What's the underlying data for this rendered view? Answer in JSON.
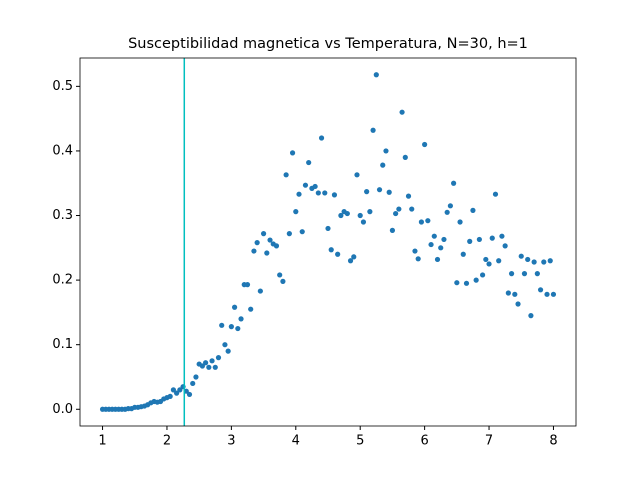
{
  "chart_data": {
    "type": "scatter",
    "title": "Susceptibilidad magnetica vs Temperatura, N=30, h=1",
    "x": [
      1,
      1.05,
      1.1,
      1.15,
      1.2,
      1.25,
      1.3,
      1.35,
      1.4,
      1.45,
      1.5,
      1.55,
      1.6,
      1.65,
      1.7,
      1.75,
      1.8,
      1.85,
      1.9,
      1.95,
      2,
      2.05,
      2.1,
      2.15,
      2.2,
      2.25,
      2.3,
      2.35,
      2.4,
      2.45,
      2.5,
      2.55,
      2.6,
      2.65,
      2.7,
      2.75,
      2.8,
      2.85,
      2.9,
      2.95,
      3,
      3.05,
      3.1,
      3.15,
      3.2,
      3.25,
      3.3,
      3.35,
      3.4,
      3.45,
      3.5,
      3.55,
      3.6,
      3.65,
      3.7,
      3.75,
      3.8,
      3.85,
      3.9,
      3.95,
      4,
      4.05,
      4.1,
      4.15,
      4.2,
      4.25,
      4.3,
      4.35,
      4.4,
      4.45,
      4.5,
      4.55,
      4.6,
      4.65,
      4.7,
      4.75,
      4.8,
      4.85,
      4.9,
      4.95,
      5,
      5.05,
      5.1,
      5.15,
      5.2,
      5.25,
      5.3,
      5.35,
      5.4,
      5.45,
      5.5,
      5.55,
      5.6,
      5.65,
      5.7,
      5.75,
      5.8,
      5.85,
      5.9,
      5.95,
      6,
      6.05,
      6.1,
      6.15,
      6.2,
      6.25,
      6.3,
      6.35,
      6.4,
      6.45,
      6.5,
      6.55,
      6.6,
      6.65,
      6.7,
      6.75,
      6.8,
      6.85,
      6.9,
      6.95,
      7,
      7.05,
      7.1,
      7.15,
      7.2,
      7.25,
      7.3,
      7.35,
      7.4,
      7.45,
      7.5,
      7.55,
      7.6,
      7.65,
      7.7,
      7.75,
      7.8,
      7.85,
      7.9,
      7.95,
      8
    ],
    "values": [
      0,
      0,
      0,
      0,
      0,
      0,
      0,
      0,
      0.001,
      0.001,
      0.003,
      0.003,
      0.004,
      0.005,
      0.007,
      0.01,
      0.012,
      0.011,
      0.012,
      0.016,
      0.018,
      0.02,
      0.03,
      0.025,
      0.03,
      0.035,
      0.028,
      0.023,
      0.04,
      0.05,
      0.07,
      0.067,
      0.072,
      0.065,
      0.075,
      0.065,
      0.08,
      0.13,
      0.1,
      0.09,
      0.128,
      0.158,
      0.125,
      0.14,
      0.193,
      0.193,
      0.155,
      0.245,
      0.258,
      0.183,
      0.272,
      0.242,
      0.262,
      0.256,
      0.253,
      0.208,
      0.198,
      0.363,
      0.272,
      0.397,
      0.306,
      0.333,
      0.275,
      0.347,
      0.382,
      0.342,
      0.345,
      0.335,
      0.42,
      0.335,
      0.28,
      0.247,
      0.332,
      0.24,
      0.3,
      0.306,
      0.303,
      0.23,
      0.236,
      0.363,
      0.3,
      0.29,
      0.337,
      0.306,
      0.432,
      0.518,
      0.34,
      0.378,
      0.4,
      0.336,
      0.277,
      0.303,
      0.31,
      0.46,
      0.39,
      0.33,
      0.31,
      0.245,
      0.233,
      0.29,
      0.41,
      0.292,
      0.255,
      0.268,
      0.232,
      0.25,
      0.263,
      0.305,
      0.315,
      0.35,
      0.196,
      0.29,
      0.24,
      0.195,
      0.26,
      0.308,
      0.2,
      0.263,
      0.208,
      0.232,
      0.225,
      0.265,
      0.333,
      0.23,
      0.268,
      0.253,
      0.18,
      0.21,
      0.178,
      0.163,
      0.237,
      0.21,
      0.232,
      0.145,
      0.228,
      0.21,
      0.185,
      0.228,
      0.178,
      0.23,
      0.178
    ],
    "color": "#1f77b4",
    "vline": {
      "x": 2.269,
      "color": "#00bfbf"
    },
    "xlim": [
      0.65,
      8.35
    ],
    "ylim": [
      -0.0259,
      0.5439
    ],
    "xticks": [
      1,
      2,
      3,
      4,
      5,
      6,
      7,
      8
    ],
    "yticks": [
      {
        "value": 0,
        "label": "0.0"
      },
      0.1,
      0.2,
      0.3,
      0.4,
      0.5
    ]
  }
}
